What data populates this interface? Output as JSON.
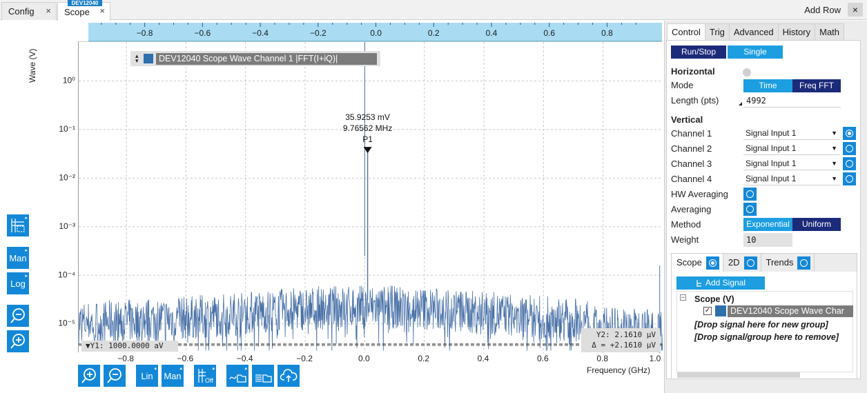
{
  "tabs": {
    "config": "Config",
    "scope": "Scope",
    "device_tag": "DEV12040",
    "close": "×",
    "add_row": "Add Row",
    "close_all": "×"
  },
  "plot": {
    "top_axis_ticks": [
      "−0.8",
      "−0.6",
      "−0.4",
      "−0.2",
      "0.0",
      "0.2",
      "0.4",
      "0.6",
      "0.8"
    ],
    "bottom_axis_ticks": [
      "−0.8",
      "−0.6",
      "−0.4",
      "−0.2",
      "0.0",
      "0.2",
      "0.4",
      "0.6",
      "0.8",
      "1.0"
    ],
    "y_ticks": [
      "10⁰",
      "10⁻¹",
      "10⁻²",
      "10⁻³",
      "10⁻⁴",
      "10⁻⁵"
    ],
    "ylabel": "Wave (V)",
    "xlabel": "Frequency (GHz)",
    "legend": "DEV12040 Scope Wave Channel 1 |FFT(I+iQ)|",
    "marker": {
      "value": "35.9253 mV",
      "freq": "9.76562 MHz",
      "name": "P1"
    },
    "cursor1": "▼Y1: 1000.0000 aV",
    "cursor2_line1": "Y2: 2.1610 μV",
    "cursor2_line2": "Δ = +2.1610 μV",
    "series_color": "#4a72a8"
  },
  "chart_data": {
    "type": "line",
    "title": "DEV12040 Scope Wave Channel 1 |FFT(I+iQ)|",
    "xlabel": "Frequency (GHz)",
    "ylabel": "Wave (V)",
    "xlim": [
      -0.96,
      1.0
    ],
    "ylim_log10": [
      -5.6,
      0.8
    ],
    "y_scale": "log",
    "grid": true,
    "peak": {
      "x": 0.00976562,
      "y": 0.0359253,
      "label": "P1"
    },
    "noise_floor_log10": [
      -5.6,
      -4.6
    ]
  },
  "toolbar_left": {
    "man_label": "Man",
    "log_label": "Log"
  },
  "toolbar_bottom": {
    "lin_label": "Lin",
    "man_label": "Man",
    "off_label": "Off"
  },
  "panel": {
    "tabs": [
      "Control",
      "Trig",
      "Advanced",
      "History",
      "Math"
    ],
    "run_stop": "Run/Stop",
    "single": "Single",
    "horizontal": "Horizontal",
    "mode_label": "Mode",
    "mode_time": "Time",
    "mode_freq": "Freq FFT",
    "length_label": "Length (pts)",
    "length_value": "4992",
    "vertical": "Vertical",
    "channels": [
      {
        "label": "Channel 1",
        "value": "Signal Input 1"
      },
      {
        "label": "Channel 2",
        "value": "Signal Input 1"
      },
      {
        "label": "Channel 3",
        "value": "Signal Input 1"
      },
      {
        "label": "Channel 4",
        "value": "Signal Input 1"
      }
    ],
    "hw_averaging": "HW Averaging",
    "averaging": "Averaging",
    "method_label": "Method",
    "method_exp": "Exponential",
    "method_uniform": "Uniform",
    "weight_label": "Weight",
    "weight_value": "10",
    "sub_tabs": [
      "Scope",
      "2D",
      "Trends"
    ],
    "add_signal": "Add Signal",
    "tree_group": "Scope (V)",
    "tree_signal": "DEV12040 Scope Wave Char",
    "drop_new": "[Drop signal here for new group]",
    "drop_remove": "[Drop signal/group here to remove]"
  }
}
